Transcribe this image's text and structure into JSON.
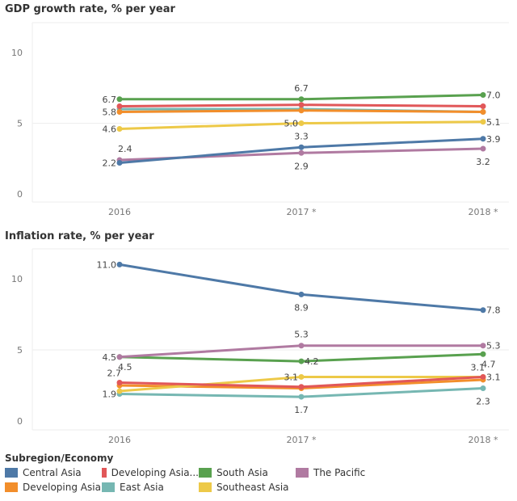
{
  "legend": {
    "title": "Subregion/Economy",
    "items": [
      {
        "label": "Central Asia",
        "color": "#4e79a7"
      },
      {
        "label": "Developing Asia...",
        "color": "#e15759"
      },
      {
        "label": "South Asia",
        "color": "#59a14f"
      },
      {
        "label": "The Pacific",
        "color": "#b07aa1"
      },
      {
        "label": "Developing Asia",
        "color": "#f28e2b"
      },
      {
        "label": "East Asia",
        "color": "#76b7b2"
      },
      {
        "label": "Southeast Asia",
        "color": "#edc948"
      }
    ]
  },
  "chart_data": [
    {
      "type": "line",
      "title": "GDP growth rate, % per year",
      "categories": [
        "2016",
        "2017 *",
        "2018 *"
      ],
      "ylim": [
        0,
        11
      ],
      "yticks": [
        0,
        5,
        10
      ],
      "series": [
        {
          "name": "East Asia",
          "color": "#76b7b2",
          "values": [
            6.0,
            6.0,
            5.8
          ]
        },
        {
          "name": "Developing Asia...",
          "color": "#e15759",
          "values": [
            6.2,
            6.3,
            6.2
          ]
        },
        {
          "name": "Developing Asia",
          "color": "#f28e2b",
          "values": [
            5.8,
            5.9,
            5.8
          ]
        },
        {
          "name": "Southeast Asia",
          "color": "#edc948",
          "values": [
            4.6,
            5.0,
            5.1
          ]
        },
        {
          "name": "The Pacific",
          "color": "#b07aa1",
          "values": [
            2.4,
            2.9,
            3.2
          ]
        },
        {
          "name": "Central Asia",
          "color": "#4e79a7",
          "values": [
            2.2,
            3.3,
            3.9
          ]
        },
        {
          "name": "South Asia",
          "color": "#59a14f",
          "values": [
            6.7,
            6.7,
            7.0
          ]
        }
      ]
    },
    {
      "type": "line",
      "title": "Inflation rate, % per year",
      "categories": [
        "2016",
        "2017 *",
        "2018 *"
      ],
      "ylim": [
        0,
        11.5
      ],
      "yticks": [
        0,
        5,
        10
      ],
      "series": [
        {
          "name": "East Asia",
          "color": "#76b7b2",
          "values": [
            1.9,
            1.7,
            2.3
          ]
        },
        {
          "name": "Developing Asia",
          "color": "#f28e2b",
          "values": [
            2.5,
            2.3,
            2.9
          ]
        },
        {
          "name": "Southeast Asia",
          "color": "#edc948",
          "values": [
            2.1,
            3.1,
            3.1
          ]
        },
        {
          "name": "Developing Asia...",
          "color": "#e15759",
          "values": [
            2.7,
            2.4,
            3.1
          ]
        },
        {
          "name": "South Asia",
          "color": "#59a14f",
          "values": [
            4.5,
            4.2,
            4.7
          ]
        },
        {
          "name": "The Pacific",
          "color": "#b07aa1",
          "values": [
            4.5,
            5.3,
            5.3
          ]
        },
        {
          "name": "Central Asia",
          "color": "#4e79a7",
          "values": [
            11.0,
            8.9,
            7.8
          ]
        }
      ]
    }
  ]
}
